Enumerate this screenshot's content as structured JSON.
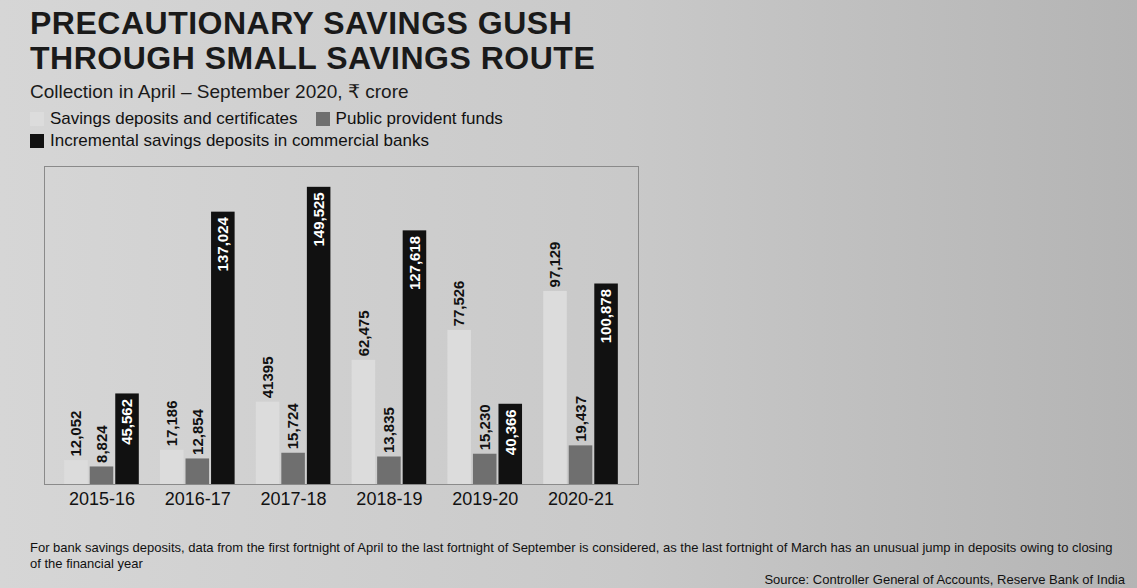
{
  "chart_data": {
    "type": "bar",
    "title": "PRECAUTIONARY SAVINGS GUSH THROUGH SMALL SAVINGS ROUTE",
    "subtitle": "Collection in April – September 2020, ₹ crore",
    "categories": [
      "2015-16",
      "2016-17",
      "2017-18",
      "2018-19",
      "2019-20",
      "2020-21"
    ],
    "series": [
      {
        "name": "Savings deposits and certificates",
        "color": "#dcdcdc",
        "values": [
          12052,
          17186,
          41395,
          62475,
          77526,
          97129
        ],
        "value_labels": [
          "12,052",
          "17,186",
          "41395",
          "62,475",
          "77,526",
          "97,129"
        ]
      },
      {
        "name": "Public provident funds",
        "color": "#6f6f6f",
        "values": [
          8824,
          12854,
          15724,
          13835,
          15230,
          19437
        ],
        "value_labels": [
          "8,824",
          "12,854",
          "15,724",
          "13,835",
          "15,230",
          "19,437"
        ]
      },
      {
        "name": "Incremental savings deposits in commercial banks",
        "color": "#111111",
        "values": [
          45562,
          137024,
          149525,
          127618,
          40366,
          100878
        ],
        "value_labels": [
          "45,562",
          "137,024",
          "149,525",
          "127,618",
          "40,366",
          "100,878"
        ]
      }
    ],
    "ylim": [
      0,
      160000
    ],
    "data_labels": true,
    "tick_labels": "x",
    "legend": "top-left",
    "footnote": "For bank savings deposits, data from the first fortnight of April to the last fortnight of September is considered, as the last fortnight of March has an unusual jump in deposits owing to closing of the financial year",
    "source": "Source: Controller General of Accounts, Reserve Bank of India"
  }
}
